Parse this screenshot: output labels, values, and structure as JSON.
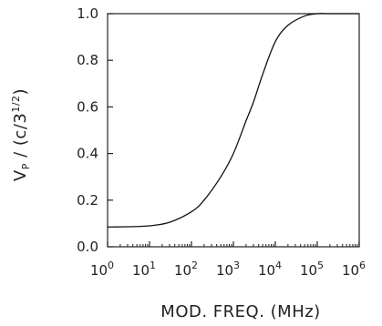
{
  "chart_data": {
    "type": "line",
    "title": "",
    "xlabel": "MOD. FREQ. (MHz)",
    "ylabel": "V_P / (c/3^{1/2})",
    "ylabel_parts": {
      "v": "V",
      "sub": "P",
      "mid": " / (c/3",
      "sup": "1/2",
      "end": ")"
    },
    "xscale": "log",
    "xlim": [
      1,
      1000000
    ],
    "ylim": [
      0,
      1.0
    ],
    "grid": false,
    "xticks": [
      {
        "value": 1,
        "base": "10",
        "exp": "0"
      },
      {
        "value": 10,
        "base": "10",
        "exp": "1"
      },
      {
        "value": 100,
        "base": "10",
        "exp": "2"
      },
      {
        "value": 1000,
        "base": "10",
        "exp": "3"
      },
      {
        "value": 10000,
        "base": "10",
        "exp": "4"
      },
      {
        "value": 100000,
        "base": "10",
        "exp": "5"
      },
      {
        "value": 1000000,
        "base": "10",
        "exp": "6"
      }
    ],
    "yticks": [
      {
        "value": 0.0,
        "label": "0.0"
      },
      {
        "value": 0.2,
        "label": "0.2"
      },
      {
        "value": 0.4,
        "label": "0.4"
      },
      {
        "value": 0.6,
        "label": "0.6"
      },
      {
        "value": 0.8,
        "label": "0.8"
      },
      {
        "value": 1.0,
        "label": "1.0"
      }
    ],
    "series": [
      {
        "color": "#111111",
        "x": [
          1,
          3,
          10,
          30,
          100,
          200,
          500,
          1000,
          2000,
          3000,
          5000,
          10000,
          20000,
          50000,
          100000,
          200000,
          1000000
        ],
        "y": [
          0.085,
          0.086,
          0.09,
          0.105,
          0.15,
          0.2,
          0.3,
          0.4,
          0.54,
          0.62,
          0.74,
          0.88,
          0.95,
          0.99,
          1.0,
          1.0,
          1.0
        ]
      }
    ]
  }
}
